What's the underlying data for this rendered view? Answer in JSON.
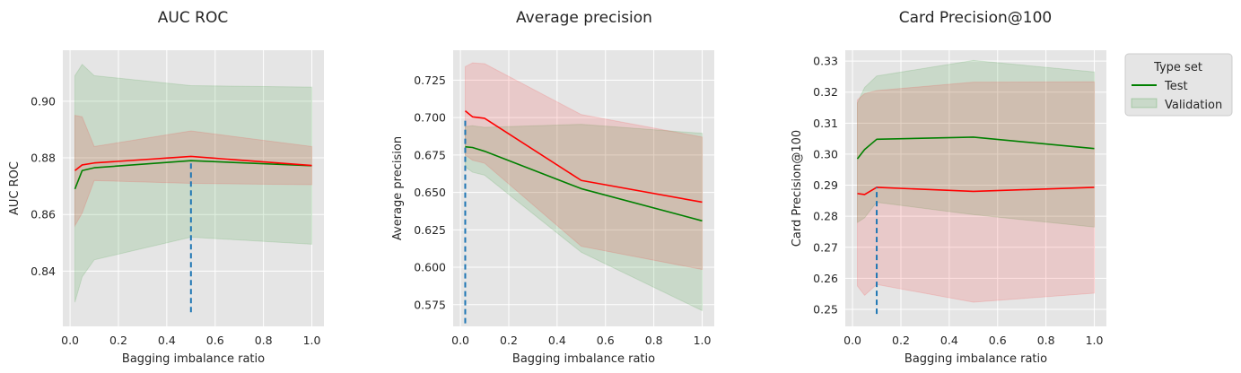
{
  "colors": {
    "background": "#e5e5e5",
    "grid": "#ffffff",
    "test_line": "#008000",
    "test_band": "#008000",
    "validation_line": "#ff0000",
    "validation_band": "#ff0000",
    "optimum_marker": "#1f77b4"
  },
  "legend": {
    "title": "Type set",
    "entries": [
      {
        "label": "Test",
        "style": "line",
        "color": "#008000"
      },
      {
        "label": "Validation",
        "style": "band",
        "color": "#008000"
      }
    ],
    "placement": "outside right, top"
  },
  "chart_data": [
    {
      "type": "line",
      "title": "AUC ROC",
      "xlabel": "Bagging imbalance ratio",
      "ylabel": "AUC ROC",
      "xlim": [
        -0.03,
        1.05
      ],
      "ylim": [
        0.8205,
        0.918
      ],
      "xticks": [
        0.0,
        0.2,
        0.4,
        0.6,
        0.8,
        1.0
      ],
      "xtick_labels": [
        "0.0",
        "0.2",
        "0.4",
        "0.6",
        "0.8",
        "1.0"
      ],
      "yticks": [
        0.84,
        0.86,
        0.88,
        0.9
      ],
      "ytick_labels": [
        "0.84",
        "0.86",
        "0.88",
        "0.90"
      ],
      "grid": true,
      "x": [
        0.02,
        0.05,
        0.1,
        0.5,
        1.0
      ],
      "series": [
        {
          "name": "Test",
          "color": "#008000",
          "values": [
            0.869,
            0.8755,
            0.8765,
            0.879,
            0.8772
          ],
          "lower": [
            0.829,
            0.838,
            0.844,
            0.852,
            0.8495
          ],
          "upper": [
            0.909,
            0.913,
            0.909,
            0.9055,
            0.905
          ]
        },
        {
          "color": "#ff0000",
          "values": [
            0.8755,
            0.8775,
            0.8782,
            0.8805,
            0.8773
          ],
          "lower": [
            0.856,
            0.8605,
            0.872,
            0.871,
            0.8705
          ],
          "upper": [
            0.895,
            0.8945,
            0.884,
            0.8895,
            0.884
          ]
        }
      ],
      "optimum": {
        "x": 0.5,
        "y_from": 0.8255,
        "y_to": 0.879
      }
    },
    {
      "type": "line",
      "title": "Average precision",
      "xlabel": "Bagging imbalance ratio",
      "ylabel": "Average precision",
      "xlim": [
        -0.03,
        1.05
      ],
      "ylim": [
        0.5605,
        0.745
      ],
      "xticks": [
        0.0,
        0.2,
        0.4,
        0.6,
        0.8,
        1.0
      ],
      "xtick_labels": [
        "0.0",
        "0.2",
        "0.4",
        "0.6",
        "0.8",
        "1.0"
      ],
      "yticks": [
        0.575,
        0.6,
        0.625,
        0.65,
        0.675,
        0.7,
        0.725
      ],
      "ytick_labels": [
        "0.575",
        "0.600",
        "0.625",
        "0.650",
        "0.675",
        "0.700",
        "0.725"
      ],
      "grid": true,
      "x": [
        0.02,
        0.05,
        0.1,
        0.5,
        1.0
      ],
      "series": [
        {
          "name": "Test",
          "color": "#008000",
          "values": [
            0.6805,
            0.68,
            0.6775,
            0.6525,
            0.631
          ],
          "lower": [
            0.667,
            0.6635,
            0.6615,
            0.61,
            0.571
          ],
          "upper": [
            0.694,
            0.6945,
            0.6935,
            0.6955,
            0.6895
          ]
        },
        {
          "color": "#ff0000",
          "values": [
            0.7045,
            0.7005,
            0.6995,
            0.658,
            0.6435
          ],
          "lower": [
            0.675,
            0.6715,
            0.6695,
            0.614,
            0.5985
          ],
          "upper": [
            0.734,
            0.7365,
            0.736,
            0.702,
            0.687
          ]
        }
      ],
      "optimum": {
        "x": 0.02,
        "y_from": 0.5625,
        "y_to": 0.6995
      }
    },
    {
      "type": "line",
      "title": "Card Precision@100",
      "xlabel": "Bagging imbalance ratio",
      "ylabel": "Card Precision@100",
      "xlim": [
        -0.03,
        1.05
      ],
      "ylim": [
        0.2445,
        0.3335
      ],
      "xticks": [
        0.0,
        0.2,
        0.4,
        0.6,
        0.8,
        1.0
      ],
      "xtick_labels": [
        "0.0",
        "0.2",
        "0.4",
        "0.6",
        "0.8",
        "1.0"
      ],
      "yticks": [
        0.25,
        0.26,
        0.27,
        0.28,
        0.29,
        0.3,
        0.31,
        0.32,
        0.33
      ],
      "ytick_labels": [
        "0.25",
        "0.26",
        "0.27",
        "0.28",
        "0.29",
        "0.30",
        "0.31",
        "0.32",
        "0.33"
      ],
      "grid": true,
      "x": [
        0.02,
        0.05,
        0.1,
        0.5,
        1.0
      ],
      "series": [
        {
          "name": "Test",
          "color": "#008000",
          "values": [
            0.2985,
            0.3015,
            0.3048,
            0.3055,
            0.3018
          ],
          "lower": [
            0.278,
            0.2795,
            0.2845,
            0.2805,
            0.2765
          ],
          "upper": [
            0.3165,
            0.3215,
            0.3252,
            0.3302,
            0.3265
          ]
        },
        {
          "color": "#ff0000",
          "values": [
            0.2873,
            0.287,
            0.2893,
            0.288,
            0.2893
          ],
          "lower": [
            0.2575,
            0.2545,
            0.258,
            0.2523,
            0.2552
          ],
          "upper": [
            0.3175,
            0.3195,
            0.3205,
            0.3232,
            0.3233
          ]
        }
      ],
      "optimum": {
        "x": 0.1,
        "y_from": 0.2485,
        "y_to": 0.2893
      }
    }
  ]
}
